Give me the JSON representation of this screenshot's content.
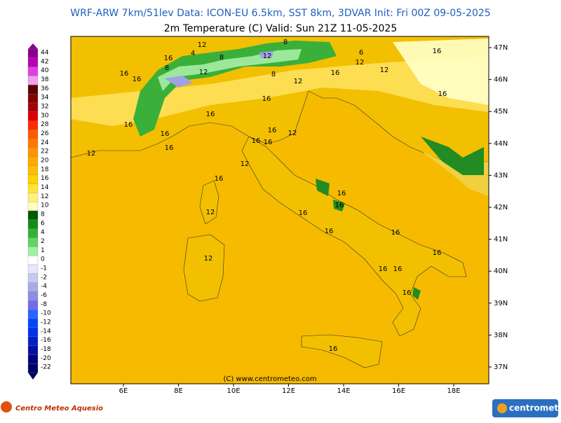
{
  "header": {
    "line1": "WRF-ARW 7km/51lev  Data: ICON-EU 6.5km, SST 8km, 3DVAR  Init: Fri 00Z 09-05-2025",
    "line2": "2m Temperature (C)  Valid: Sun 21Z 11-05-2025"
  },
  "colorbar": [
    {
      "value": 44,
      "color": "#8a008a"
    },
    {
      "value": 42,
      "color": "#b800b8"
    },
    {
      "value": 40,
      "color": "#e040e0"
    },
    {
      "value": 38,
      "color": "#f0a0f0"
    },
    {
      "value": 36,
      "color": "#5a0000"
    },
    {
      "value": 34,
      "color": "#820000"
    },
    {
      "value": 32,
      "color": "#aa0000"
    },
    {
      "value": 30,
      "color": "#dc0000"
    },
    {
      "value": 28,
      "color": "#ff2a00"
    },
    {
      "value": 26,
      "color": "#ff5a00"
    },
    {
      "value": 24,
      "color": "#ff7800"
    },
    {
      "value": 22,
      "color": "#ff9600"
    },
    {
      "value": 20,
      "color": "#ffaa00"
    },
    {
      "value": 18,
      "color": "#ffbe00"
    },
    {
      "value": 16,
      "color": "#ffd200"
    },
    {
      "value": 14,
      "color": "#ffe632"
    },
    {
      "value": 12,
      "color": "#fff078"
    },
    {
      "value": 10,
      "color": "#ffffbe"
    },
    {
      "value": 8,
      "color": "#005a00"
    },
    {
      "value": 6,
      "color": "#148c14"
    },
    {
      "value": 4,
      "color": "#32b432"
    },
    {
      "value": 2,
      "color": "#64d264"
    },
    {
      "value": 1,
      "color": "#a0f0a0"
    },
    {
      "value": 0,
      "color": "#ffffff"
    },
    {
      "value": -1,
      "color": "#e6e6ff"
    },
    {
      "value": -2,
      "color": "#c8c8f0"
    },
    {
      "value": -4,
      "color": "#aaaae6"
    },
    {
      "value": -6,
      "color": "#8c8ce6"
    },
    {
      "value": -8,
      "color": "#6e6ee6"
    },
    {
      "value": -10,
      "color": "#2864ff"
    },
    {
      "value": -12,
      "color": "#0046ff"
    },
    {
      "value": -14,
      "color": "#0032e6"
    },
    {
      "value": -16,
      "color": "#0020c8"
    },
    {
      "value": -18,
      "color": "#0010a0"
    },
    {
      "value": -20,
      "color": "#000082"
    },
    {
      "value": -22,
      "color": "#000064"
    }
  ],
  "longitudes": [
    "6E",
    "8E",
    "10E",
    "12E",
    "14E",
    "16E",
    "18E"
  ],
  "latitudes": [
    "47N",
    "46N",
    "45N",
    "44N",
    "43N",
    "42N",
    "41N",
    "40N",
    "39N",
    "38N",
    "37N"
  ],
  "contour_labels": [
    12,
    16,
    16,
    16,
    4,
    8,
    12,
    8,
    8,
    8,
    12,
    6,
    12,
    12,
    16,
    12,
    16,
    16,
    16,
    16,
    16,
    12,
    16,
    16,
    16,
    12,
    16,
    16,
    12,
    16,
    16,
    16,
    12,
    16,
    16,
    16,
    12,
    16,
    16,
    16,
    16,
    16
  ],
  "copyright": "(C) www.centrometeo.com",
  "footer": {
    "left_logo": "Centro Meteo Aquesio",
    "right_logo": "centrometeo"
  }
}
